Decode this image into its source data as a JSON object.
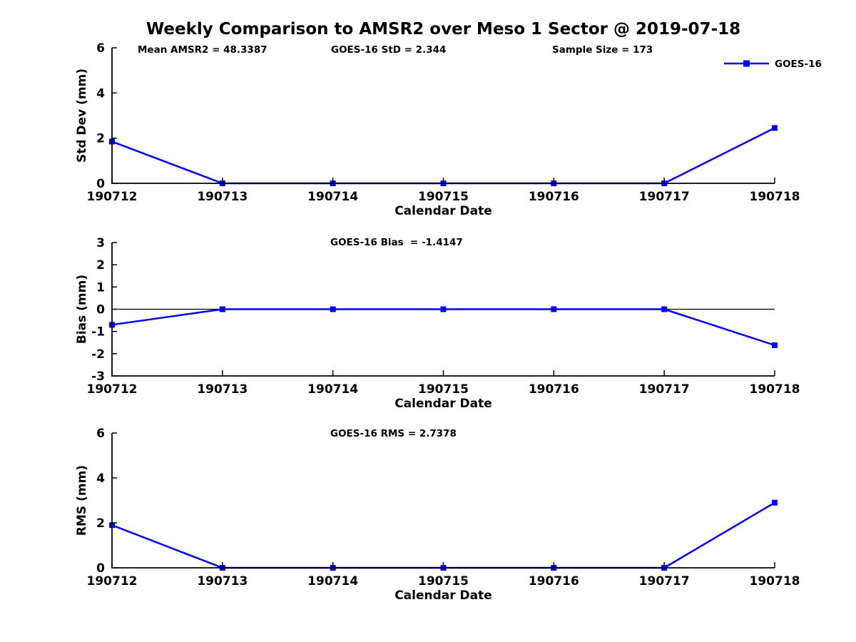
{
  "title": "Weekly Comparison to AMSR2 over Meso 1 Sector @ 2019-07-18",
  "line_color": "#0000ee",
  "axis_color": "#000000",
  "legend": {
    "label": "GOES-16"
  },
  "chart_data": [
    {
      "type": "line",
      "x": [
        "190712",
        "190713",
        "190714",
        "190715",
        "190716",
        "190717",
        "190718"
      ],
      "series": [
        {
          "name": "GOES-16",
          "values": [
            1.85,
            0,
            0,
            0,
            0,
            0,
            2.45
          ]
        }
      ],
      "xlabel": "Calendar Date",
      "ylabel": "Std Dev (mm)",
      "ylim": [
        0,
        6
      ],
      "yticks": [
        0,
        2,
        4,
        6
      ],
      "annotations": [
        "Mean AMSR2 = 48.3387",
        "GOES-16 StD = 2.344",
        "Sample Size = 173"
      ],
      "zero_line": false,
      "show_legend": true,
      "grid": false,
      "legend_position": "upper-right"
    },
    {
      "type": "line",
      "x": [
        "190712",
        "190713",
        "190714",
        "190715",
        "190716",
        "190717",
        "190718"
      ],
      "series": [
        {
          "name": "GOES-16",
          "values": [
            -0.7,
            0,
            0,
            0,
            0,
            0,
            -1.62
          ]
        }
      ],
      "xlabel": "Calendar Date",
      "ylabel": "Bias (mm)",
      "ylim": [
        -3,
        3
      ],
      "yticks": [
        -3,
        -2,
        -1,
        0,
        1,
        2,
        3
      ],
      "annotations": [
        "GOES-16 Bias  = -1.4147"
      ],
      "zero_line": true,
      "show_legend": false,
      "grid": false
    },
    {
      "type": "line",
      "x": [
        "190712",
        "190713",
        "190714",
        "190715",
        "190716",
        "190717",
        "190718"
      ],
      "series": [
        {
          "name": "GOES-16",
          "values": [
            1.9,
            0,
            0,
            0,
            0,
            0,
            2.9
          ]
        }
      ],
      "xlabel": "Calendar Date",
      "ylabel": "RMS (mm)",
      "ylim": [
        0,
        6
      ],
      "yticks": [
        0,
        2,
        4,
        6
      ],
      "annotations": [
        "GOES-16 RMS = 2.7378"
      ],
      "zero_line": false,
      "show_legend": false,
      "grid": false
    }
  ]
}
